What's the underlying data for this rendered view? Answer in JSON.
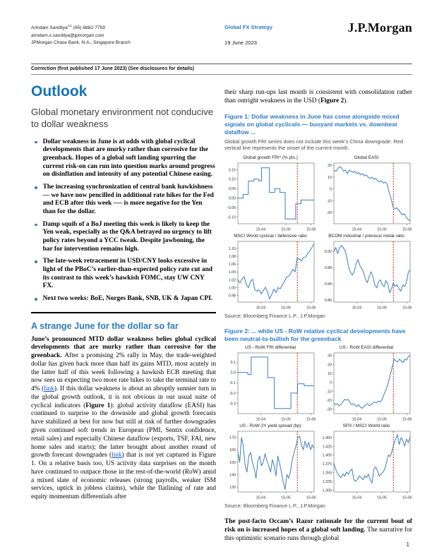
{
  "colors": {
    "accent_blue": "#2e7cc3",
    "title_blue": "#1273be",
    "chart_line": "#3c7dbe",
    "vline_red": "#cc0000",
    "link_blue": "#1155cc"
  },
  "header": {
    "analyst_line1": "Arindam Sandilya",
    "analyst_suffix": "AC",
    "analyst_phone": " (65) 6882-7759",
    "analyst_email": "arindam.x.sandilya@jpmorgan.com",
    "analyst_org": "JPMorgan Chase Bank, N.A., Singapore Branch",
    "report_type": "Global FX Strategy",
    "report_date": "19 June 2023",
    "logo": "J.P.Morgan",
    "correction_note": "Correction (first published 17 June 2023) (See disclosures for details)"
  },
  "left_column": {
    "title": "Outlook",
    "subtitle": "Global monetary environment not conducive to dollar weakness",
    "bullets": [
      "Dollar weakness in June is at odds with global cyclical developments that are murky rather than corrosive for the greenback. Hopes of a global soft landing spurring the current risk-on can run into question marks around progress on disinflation and intensity of any potential Chinese easing.",
      "The increasing synchronization of central bank hawkishness — we have now pencilled in additional rate hikes for the Fed and ECB after this week -— is more negative for the Yen than for the dollar.",
      "Damp squib of a BoJ meeting this week is likely to keep the Yen weak, especially as the Q&A betrayed no urgency to lift policy rates beyond a YCC tweak. Despite jawboning, the bar for intervention remains high.",
      "The late-week retracement in USD/CNY looks excessive in light of the PBoC’s earlier-than-expected policy rate cut and its contrast to this week’s hawkish FOMC, stay UW CNY FX.",
      "Next two weeks: BoE, Norges Bank, SNB, UK & Japan CPI."
    ],
    "section_heading": "A strange June for the dollar so far",
    "paragraph": [
      {
        "t": "June’s pronounced MTD dollar weakness belies global cyclical developments that are murky rather than corrosive for the greenback. ",
        "b": true
      },
      {
        "t": "After a promising 2% rally in May, the trade-weighted dollar has given back more than half its gains MTD, most acutely in the latter half of this week following a hawkish ECB meeting that now sees us expecting two more rate hikes to take the terminal rate to 4% ("
      },
      {
        "t": "link",
        "link": true
      },
      {
        "t": "). If this dollar weakness is about an abruptly sunnier turn in the global growth outlook, it is not obvious in our usual suite of cyclical indicators ("
      },
      {
        "t": "Figure 1",
        "b": true
      },
      {
        "t": "): global activity dataflow (EASI) has continued to surprise to the downside and global growth forecasts have stabilized at best for now but still at risk of further downgrades given continued soft trends in European (PMI, Sentix confidence, retail sales) and especially Chinese dataflow (exports, TSF, FAI, new home sales and starts); the latter brought about another round of growth forecast downgrades ("
      },
      {
        "t": "link",
        "link": true
      },
      {
        "t": ") that is not yet captured in Figure 1. On a relative basis too, US activity data surprises on the month have continued to outpace those in the rest-of-the-world (RoW) amid a mixed slate of economic releases (strong payrolls, weaker ISM services, uptick in jobless claims), while the flatlining of rate and equity momentum differentials after"
      }
    ]
  },
  "right_column": {
    "intro_paragraph": [
      {
        "t": "their sharp run-ups last month is consistent with consolidation rather than outright weakness in the USD ("
      },
      {
        "t": "Figure 2",
        "b": true
      },
      {
        "t": ")."
      }
    ],
    "figure1": {
      "caption": "Figure 1: Dollar weakness in June has come alongside mixed signals on global cyclicals — buoyant markets vs. downbeat dataflow ...",
      "note": "Global growth FRI series does not include this week’s China downgrade. Red vertical line represents the onset of the current month.",
      "source": "Source: Bloomberg Finance L.P., J.P.Morgan"
    },
    "figure2": {
      "caption": "Figure 2: ... while US - RoW relative cyclical developments have been neutral-to-bullish for the greenback",
      "source": "Source: Bloomberg Finance L.P., J.P.Morgan"
    },
    "bottom_paragraph": [
      {
        "t": "The post-facto Occam’s Razor rationale for the current bout of risk on is increased hopes of a global soft landing. ",
        "b": true
      },
      {
        "t": "The narrative for this optimistic scenario runs through global"
      }
    ],
    "page_number": "1"
  },
  "chart_data": [
    {
      "type": "line",
      "step": true,
      "title": "Global growth FRI* (% pts.)",
      "ylim": [
        -0.135,
        0.185
      ],
      "yticks": [
        {
          "v": 0.15,
          "label": "0.15"
        },
        {
          "v": 0.1,
          "label": "0.10"
        },
        {
          "v": 0.05,
          "label": "0.05"
        },
        {
          "v": 0.0,
          "label": "0.00"
        },
        {
          "v": -0.05,
          "label": "-0.05"
        },
        {
          "v": -0.1,
          "label": "-0.10"
        }
      ],
      "xticks": [
        {
          "f": 0.3,
          "label": "15-04"
        },
        {
          "f": 0.63,
          "label": "15-05"
        },
        {
          "f": 0.96,
          "label": "15-06"
        }
      ],
      "vline": 0.78,
      "values": [
        0.0,
        0.0,
        0.02,
        0.02,
        0.09,
        0.09,
        0.1,
        0.1,
        0.09,
        0.16,
        0.16,
        0.16,
        0.03,
        0.03,
        0.05,
        0.05,
        0.03,
        0.03,
        -0.11,
        -0.11,
        -0.11,
        -0.11,
        -0.03,
        -0.03,
        -0.01,
        -0.01,
        -0.01,
        -0.01,
        -0.01,
        -0.01
      ]
    },
    {
      "type": "line",
      "step": false,
      "title": "Global EASI",
      "ylim": [
        -29.5,
        22
      ],
      "yticks": [
        {
          "v": 20,
          "label": "20"
        },
        {
          "v": 10,
          "label": "10"
        },
        {
          "v": 0,
          "label": "0"
        },
        {
          "v": -10,
          "label": "-10"
        },
        {
          "v": -20,
          "label": "-20"
        }
      ],
      "xticks": [
        {
          "f": 0.3,
          "label": "15-04"
        },
        {
          "f": 0.63,
          "label": "15-05"
        },
        {
          "f": 0.96,
          "label": "15-06"
        }
      ],
      "vline": 0.78,
      "values": [
        16,
        15,
        17,
        19,
        18,
        15,
        16,
        13,
        16,
        15,
        14,
        15,
        13,
        14,
        12,
        13,
        11,
        12,
        10,
        9,
        10,
        8,
        9,
        7,
        6,
        7,
        5,
        6,
        4,
        -3,
        -8,
        -15,
        -17,
        -16,
        -18,
        -20,
        -22,
        -21,
        -24,
        -26,
        -27
      ]
    },
    {
      "type": "line",
      "step": false,
      "title": "MSCI World cyclical / defensive ratio",
      "ylim": [
        0.963,
        1.118
      ],
      "yticks": [
        {
          "v": 1.1,
          "label": "1.10"
        },
        {
          "v": 1.08,
          "label": "1.08"
        },
        {
          "v": 1.06,
          "label": "1.06"
        },
        {
          "v": 1.04,
          "label": "1.04"
        },
        {
          "v": 1.02,
          "label": "1.02"
        },
        {
          "v": 1.0,
          "label": "1.00"
        },
        {
          "v": 0.98,
          "label": "0.98"
        }
      ],
      "xticks": [
        {
          "f": 0.3,
          "label": "15-04"
        },
        {
          "f": 0.63,
          "label": "15-05"
        },
        {
          "f": 0.96,
          "label": "15-06"
        }
      ],
      "vline": 0.78,
      "values": [
        1.02,
        1.012,
        1.022,
        1.028,
        1.007,
        1.0,
        1.017,
        1.021,
        0.995,
        0.991,
        0.994,
        0.984,
        0.992,
        1.001,
        0.989,
        0.971,
        0.983,
        0.996,
        0.987,
        1.0,
        0.997,
        1.007,
        1.016,
        1.027,
        1.029,
        1.037,
        1.047,
        1.04,
        1.075,
        1.073,
        1.068,
        1.077,
        1.078,
        1.088,
        1.094,
        1.103,
        1.112
      ]
    },
    {
      "type": "line",
      "step": false,
      "title": "BCOM industrial / precious metal ratio",
      "ylim": [
        0.795,
        0.945
      ],
      "yticks": [
        {
          "v": 0.92,
          "label": "0.92"
        },
        {
          "v": 0.88,
          "label": "0.88"
        },
        {
          "v": 0.84,
          "label": "0.84"
        },
        {
          "v": 0.8,
          "label": "0.80"
        }
      ],
      "xticks": [
        {
          "f": 0.3,
          "label": "15-04"
        },
        {
          "f": 0.63,
          "label": "15-05"
        },
        {
          "f": 0.96,
          "label": "15-06"
        }
      ],
      "vline": 0.78,
      "values": [
        0.92,
        0.93,
        0.915,
        0.928,
        0.935,
        0.93,
        0.922,
        0.905,
        0.88,
        0.868,
        0.862,
        0.872,
        0.89,
        0.9,
        0.885,
        0.878,
        0.868,
        0.852,
        0.843,
        0.858,
        0.87,
        0.858,
        0.838,
        0.83,
        0.845,
        0.85,
        0.838,
        0.833,
        0.848,
        0.84,
        0.818,
        0.828,
        0.843,
        0.833,
        0.838,
        0.828,
        0.822,
        0.838,
        0.833,
        0.843,
        0.868,
        0.875
      ]
    },
    {
      "type": "line",
      "step": true,
      "title": "US - RoW FRI differential",
      "ylim": [
        -0.4,
        0.19
      ],
      "yticks": [
        {
          "v": 0.1,
          "label": "0.1"
        },
        {
          "v": 0.0,
          "label": "0.0"
        },
        {
          "v": -0.1,
          "label": "-0.1"
        },
        {
          "v": -0.2,
          "label": "-0.2"
        },
        {
          "v": -0.3,
          "label": "-0.3"
        }
      ],
      "xticks": [
        {
          "f": 0.3,
          "label": "15-04"
        },
        {
          "f": 0.63,
          "label": "15-05"
        },
        {
          "f": 0.96,
          "label": "15-06"
        }
      ],
      "vline": 0.78,
      "values": [
        0.0,
        0.0,
        0.0,
        -0.02,
        0.15,
        0.15,
        0.15,
        0.15,
        0.15,
        -0.05,
        -0.05,
        -0.35,
        -0.35,
        -0.35,
        -0.35,
        -0.35,
        -0.2,
        -0.2,
        -0.11,
        -0.11,
        -0.13,
        -0.13,
        -0.13,
        -0.13
      ]
    },
    {
      "type": "line",
      "step": false,
      "title": "US - RoW EASI differential",
      "ylim": [
        -35,
        33
      ],
      "yticks": [
        {
          "v": 30,
          "label": "30"
        },
        {
          "v": 20,
          "label": "20"
        },
        {
          "v": 10,
          "label": "10"
        },
        {
          "v": 0,
          "label": "0"
        },
        {
          "v": -10,
          "label": "-10"
        },
        {
          "v": -20,
          "label": "-20"
        },
        {
          "v": -30,
          "label": "-30"
        }
      ],
      "xticks": [
        {
          "f": 0.3,
          "label": "15-04"
        },
        {
          "f": 0.63,
          "label": "15-05"
        },
        {
          "f": 0.96,
          "label": "15-06"
        }
      ],
      "vline": 0.78,
      "values": [
        -23,
        -25,
        -24,
        -26,
        -25,
        -22,
        -19,
        -20,
        -19,
        -22,
        -25,
        -24,
        -26,
        -27,
        -25,
        -28,
        -29,
        -27,
        -25,
        -24,
        -26,
        -25,
        -23,
        -22,
        -23,
        -21,
        -22,
        -20,
        -15,
        -10,
        -5,
        2,
        10,
        18,
        26,
        24,
        23,
        26,
        24,
        22,
        26,
        25,
        29,
        30
      ]
    },
    {
      "type": "line",
      "step": false,
      "title": "US - RoW 2Y yield spread (bp)",
      "ylim": [
        126,
        175
      ],
      "yticks": [
        {
          "v": 170,
          "label": "170"
        },
        {
          "v": 160,
          "label": "160"
        },
        {
          "v": 150,
          "label": "150"
        },
        {
          "v": 140,
          "label": "140"
        },
        {
          "v": 130,
          "label": "130"
        }
      ],
      "xticks": [
        {
          "f": 0.3,
          "label": "15-04"
        },
        {
          "f": 0.63,
          "label": "15-05"
        },
        {
          "f": 0.96,
          "label": "15-06"
        }
      ],
      "vline": 0.78,
      "values": [
        158,
        150,
        170,
        163,
        147,
        142,
        155,
        158,
        150,
        145,
        137,
        151,
        155,
        147,
        150,
        157,
        151,
        147,
        142,
        152,
        147,
        139,
        155,
        149,
        142,
        134,
        128,
        140,
        137,
        143,
        152,
        158,
        163,
        170,
        171,
        164,
        160,
        167,
        162,
        166,
        160,
        164,
        161
      ]
    },
    {
      "type": "line",
      "step": false,
      "title": "SPX / MSCI World ratio",
      "ylim": [
        1.295,
        1.468
      ],
      "yticks": [
        {
          "v": 1.45,
          "label": "1.450"
        },
        {
          "v": 1.425,
          "label": "1.425"
        },
        {
          "v": 1.4,
          "label": "1.400"
        },
        {
          "v": 1.375,
          "label": "1.375"
        },
        {
          "v": 1.35,
          "label": "1.350"
        },
        {
          "v": 1.325,
          "label": "1.325"
        },
        {
          "v": 1.3,
          "label": "1.300"
        }
      ],
      "xticks": [
        {
          "f": 0.3,
          "label": "15-04"
        },
        {
          "f": 0.63,
          "label": "15-05"
        },
        {
          "f": 0.96,
          "label": "15-06"
        }
      ],
      "vline": 0.78,
      "values": [
        1.376,
        1.36,
        1.348,
        1.34,
        1.336,
        1.346,
        1.34,
        1.352,
        1.345,
        1.356,
        1.36,
        1.33,
        1.325,
        1.331,
        1.341,
        1.336,
        1.33,
        1.341,
        1.336,
        1.346,
        1.33,
        1.32,
        1.36,
        1.366,
        1.355,
        1.34,
        1.346,
        1.351,
        1.36,
        1.38,
        1.4,
        1.396,
        1.411,
        1.431,
        1.446,
        1.458,
        1.43,
        1.45,
        1.441,
        1.425,
        1.446,
        1.435,
        1.452
      ]
    }
  ]
}
